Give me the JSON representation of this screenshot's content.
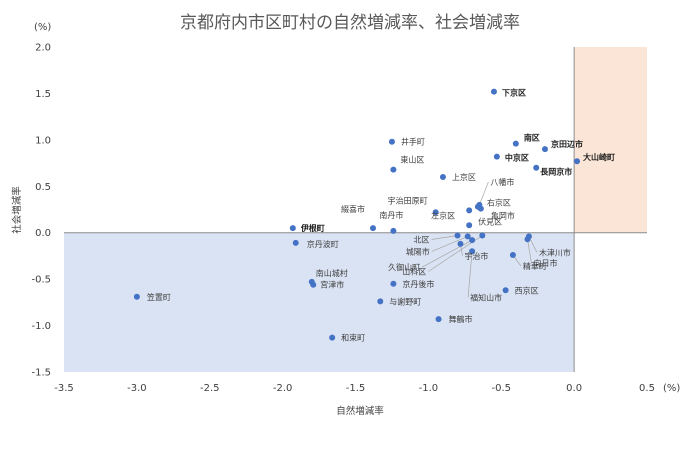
{
  "chart_data": {
    "type": "scatter",
    "title": "京都府内市区町村の自然増減率、社会増減率",
    "xlabel": "自然増減率",
    "ylabel": "社会増減率",
    "x_unit": "(%)",
    "y_unit": "(%)",
    "xlim": [
      -3.5,
      0.5
    ],
    "ylim": [
      -1.5,
      2.0
    ],
    "x_ticks": [
      "-3.5",
      "-3.0",
      "-2.5",
      "-2.0",
      "-1.5",
      "-1.0",
      "-0.5",
      "0.0",
      "0.5"
    ],
    "y_ticks": [
      "2.0",
      "1.5",
      "1.0",
      "0.5",
      "0.0",
      "-0.5",
      "-1.0",
      "-1.5"
    ],
    "grid": false,
    "legend": "none",
    "point_color": "#4472c4",
    "negative_region_color": "#dae3f3",
    "positive_region_color": "#fbe5d6",
    "points": [
      {
        "label": "下京区",
        "x": -0.55,
        "y": 1.52,
        "bold": true
      },
      {
        "label": "南区",
        "x": -0.4,
        "y": 0.96,
        "bold": true
      },
      {
        "label": "京田辺市",
        "x": -0.2,
        "y": 0.9,
        "bold": true
      },
      {
        "label": "中京区",
        "x": -0.53,
        "y": 0.82,
        "bold": true
      },
      {
        "label": "大山崎町",
        "x": 0.02,
        "y": 0.77,
        "bold": true
      },
      {
        "label": "長岡京市",
        "x": -0.26,
        "y": 0.7,
        "bold": true
      },
      {
        "label": "井手町",
        "x": -1.25,
        "y": 0.98
      },
      {
        "label": "東山区",
        "x": -1.24,
        "y": 0.68
      },
      {
        "label": "上京区",
        "x": -0.9,
        "y": 0.6
      },
      {
        "label": "八幡市",
        "x": -0.65,
        "y": 0.3
      },
      {
        "label": "右京区",
        "x": -0.66,
        "y": 0.28
      },
      {
        "label": "亀岡市",
        "x": -0.64,
        "y": 0.26
      },
      {
        "label": "宇治田原町",
        "x": -0.95,
        "y": 0.22
      },
      {
        "label": "綴喜市",
        "x": -1.38,
        "y": 0.05
      },
      {
        "label": "南丹市",
        "x": -1.24,
        "y": 0.02
      },
      {
        "label": "左京区",
        "x": -0.72,
        "y": 0.24
      },
      {
        "label": "伏見区",
        "x": -0.72,
        "y": 0.08
      },
      {
        "label": "伊根町",
        "x": -1.93,
        "y": 0.05,
        "bold": true
      },
      {
        "label": "京丹波町",
        "x": -1.91,
        "y": -0.11
      },
      {
        "label": "北区",
        "x": -0.8,
        "y": -0.03
      },
      {
        "label": "城陽市",
        "x": -0.73,
        "y": -0.04
      },
      {
        "label": "宇治市",
        "x": -0.78,
        "y": -0.12
      },
      {
        "label": "久御山町",
        "x": -0.7,
        "y": -0.08
      },
      {
        "label": "山科区",
        "x": -0.63,
        "y": -0.03
      },
      {
        "label": "福知山市",
        "x": -0.7,
        "y": -0.2
      },
      {
        "label": "木津川市",
        "x": -0.31,
        "y": -0.04
      },
      {
        "label": "向日市",
        "x": -0.32,
        "y": -0.07
      },
      {
        "label": "精華町",
        "x": -0.42,
        "y": -0.24
      },
      {
        "label": "西京区",
        "x": -0.47,
        "y": -0.62
      },
      {
        "label": "南山城村",
        "x": -1.8,
        "y": -0.53
      },
      {
        "label": "宮津市",
        "x": -1.79,
        "y": -0.56
      },
      {
        "label": "京丹後市",
        "x": -1.24,
        "y": -0.55
      },
      {
        "label": "笠置町",
        "x": -3.0,
        "y": -0.69
      },
      {
        "label": "与謝野町",
        "x": -1.33,
        "y": -0.74
      },
      {
        "label": "舞鶴市",
        "x": -0.93,
        "y": -0.93
      },
      {
        "label": "和束町",
        "x": -1.66,
        "y": -1.13
      }
    ]
  }
}
